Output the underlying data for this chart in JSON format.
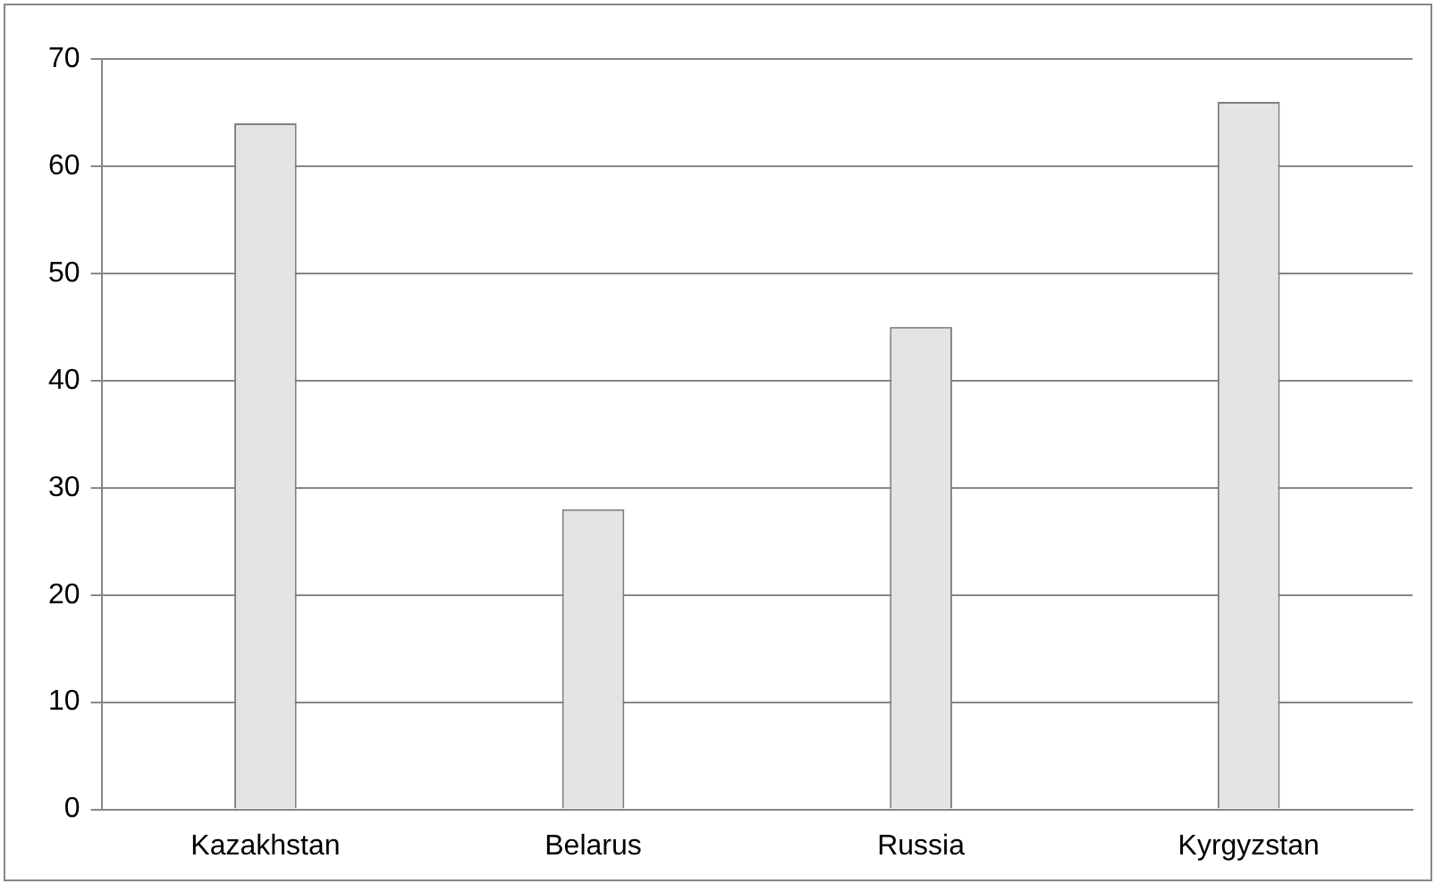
{
  "chart_data": {
    "type": "bar",
    "categories": [
      "Kazakhstan",
      "Belarus",
      "Russia",
      "Kyrgyzstan"
    ],
    "values": [
      64,
      28,
      45,
      66
    ],
    "color": "#e4e4e4",
    "ylim": [
      0,
      70
    ],
    "yticks": [
      0,
      10,
      20,
      30,
      40,
      50,
      60,
      70
    ],
    "grid": "y",
    "legend": false
  }
}
